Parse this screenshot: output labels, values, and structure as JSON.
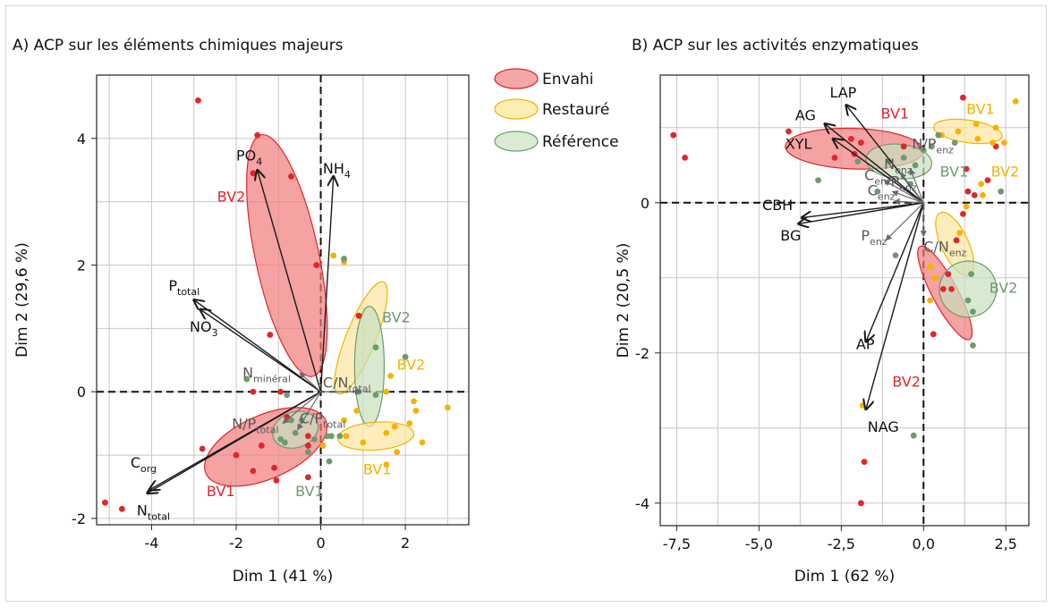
{
  "legend": {
    "items": [
      {
        "label": "Envahi",
        "fill": "#f08a8a",
        "stroke": "#e02020"
      },
      {
        "label": "Restauré",
        "fill": "#fde89a",
        "stroke": "#f2b400"
      },
      {
        "label": "Référence",
        "fill": "#cfe3c3",
        "stroke": "#6aa36a"
      }
    ]
  },
  "colors": {
    "red": "#e0262b",
    "orange": "#f2b400",
    "green": "#6e9b6e",
    "red_fill": "#f07b7b",
    "orange_fill": "#fde6a0",
    "green_fill": "#c7dfbd",
    "arrow_dark": "#1a1a1a",
    "arrow_grey": "#6b6b6b",
    "grid": "#c8c8c8"
  },
  "chart_data": [
    {
      "type": "scatter",
      "title": "A) ACP sur les éléments chimiques majeurs",
      "xlabel": "Dim 1 (41 %)",
      "ylabel": "Dim 2 (29,6 %)",
      "xlim": [
        -5.3,
        3.5
      ],
      "ylim": [
        -2.1,
        5.0
      ],
      "xticks": [
        -4,
        -2,
        0,
        2
      ],
      "xtick_labels": [
        "-4",
        "-2",
        "0",
        "2"
      ],
      "yticks": [
        -2,
        0,
        2,
        4
      ],
      "ytick_labels": [
        "-2",
        "0",
        "2",
        "4"
      ],
      "grid_x": [
        -5,
        -4,
        -3,
        -2,
        -1,
        0,
        1,
        2,
        3
      ],
      "grid_y": [
        -2,
        -1,
        0,
        1,
        2,
        3,
        4,
        5
      ],
      "grid": true,
      "series": [
        {
          "name": "Envahi",
          "color": "red",
          "points": [
            [
              -2.9,
              4.6
            ],
            [
              -1.5,
              4.05
            ],
            [
              -0.7,
              3.4
            ],
            [
              -1.6,
              3.45
            ],
            [
              -0.1,
              2.0
            ],
            [
              -1.2,
              0.9
            ],
            [
              0.9,
              1.2
            ],
            [
              -1.6,
              0.0
            ],
            [
              -0.95,
              0.0
            ],
            [
              -2.8,
              -0.9
            ],
            [
              -2.0,
              -1.0
            ],
            [
              -1.4,
              -0.85
            ],
            [
              -1.1,
              -1.2
            ],
            [
              -1.6,
              -1.25
            ],
            [
              -1.05,
              -1.4
            ],
            [
              -0.3,
              -1.35
            ],
            [
              -0.3,
              -0.7
            ],
            [
              -0.8,
              -0.4
            ],
            [
              -5.1,
              -1.75
            ],
            [
              -4.7,
              -1.85
            ],
            [
              -0.3,
              -0.85
            ]
          ]
        },
        {
          "name": "Restauré",
          "color": "orange",
          "points": [
            [
              0.3,
              2.15
            ],
            [
              0.55,
              2.05
            ],
            [
              1.55,
              0.0
            ],
            [
              1.65,
              0.25
            ],
            [
              2.2,
              -0.15
            ],
            [
              2.25,
              -0.3
            ],
            [
              2.1,
              -0.5
            ],
            [
              2.4,
              -0.8
            ],
            [
              1.8,
              -0.95
            ],
            [
              1.55,
              -1.15
            ],
            [
              3.0,
              -0.25
            ],
            [
              0.85,
              -0.3
            ],
            [
              0.55,
              -0.45
            ],
            [
              0.6,
              -0.7
            ],
            [
              1.0,
              -0.8
            ],
            [
              1.55,
              -0.65
            ],
            [
              1.75,
              -0.55
            ],
            [
              0.05,
              -0.85
            ]
          ]
        },
        {
          "name": "Référence",
          "color": "green",
          "points": [
            [
              0.55,
              2.1
            ],
            [
              1.3,
              0.7
            ],
            [
              2.0,
              0.55
            ],
            [
              -1.75,
              0.2
            ],
            [
              -0.8,
              -0.05
            ],
            [
              -0.7,
              -0.45
            ],
            [
              -0.95,
              -0.75
            ],
            [
              -0.6,
              -0.65
            ],
            [
              -0.3,
              -0.95
            ],
            [
              -0.85,
              -0.8
            ],
            [
              0.15,
              -0.7
            ],
            [
              0.25,
              -0.7
            ],
            [
              0.45,
              -0.7
            ],
            [
              0.2,
              -1.1
            ],
            [
              1.3,
              -0.05
            ],
            [
              0.9,
              0.0
            ],
            [
              -0.15,
              -0.75
            ],
            [
              -0.45,
              -0.45
            ]
          ]
        }
      ],
      "ellipses": [
        {
          "label": "BV2",
          "group": "red",
          "cx": -0.8,
          "cy": 2.15,
          "rx": 0.75,
          "ry": 1.95,
          "angle": 12,
          "label_pos": [
            -2.45,
            3.0
          ]
        },
        {
          "label": "BV1",
          "group": "red",
          "cx": -1.3,
          "cy": -0.87,
          "rx": 1.55,
          "ry": 0.5,
          "angle": 24,
          "label_pos": [
            -2.7,
            -1.65
          ]
        },
        {
          "label": "BV1",
          "group": "green",
          "cx": -0.6,
          "cy": -0.6,
          "rx": 0.55,
          "ry": 0.28,
          "angle": 20,
          "label_pos": [
            -0.6,
            -1.65
          ]
        },
        {
          "label": "BV2",
          "group": "orange",
          "cx": 0.95,
          "cy": 0.85,
          "rx": 0.35,
          "ry": 0.95,
          "angle": -22,
          "label_pos": [
            1.8,
            0.35
          ]
        },
        {
          "label": "BV2",
          "group": "green",
          "cx": 1.15,
          "cy": 0.4,
          "rx": 0.35,
          "ry": 0.95,
          "angle": 0,
          "label_pos": [
            1.45,
            1.1
          ]
        },
        {
          "label": "BV1",
          "group": "orange",
          "cx": 1.3,
          "cy": -0.7,
          "rx": 0.9,
          "ry": 0.22,
          "angle": 4,
          "label_pos": [
            1.0,
            -1.3
          ]
        }
      ],
      "vectors": [
        {
          "label": "PO",
          "sub": "4",
          "sub_pos": "low",
          "x": -1.5,
          "y": 3.5,
          "color": "dark",
          "label_pos": [
            -2.0,
            3.65
          ]
        },
        {
          "label": "NH",
          "sub": "4",
          "sub_pos": "low",
          "x": 0.3,
          "y": 3.4,
          "color": "dark",
          "label_pos": [
            0.05,
            3.45
          ]
        },
        {
          "label": "P",
          "sub": "total",
          "sub_pos": "low",
          "x": -3.0,
          "y": 1.45,
          "color": "dark",
          "label_pos": [
            -3.6,
            1.6
          ]
        },
        {
          "label": "NO",
          "sub": "3",
          "sub_pos": "low",
          "x": -2.85,
          "y": 1.3,
          "color": "dark",
          "label_pos": [
            -3.1,
            0.95
          ]
        },
        {
          "label": "C",
          "sub": "org",
          "sub_pos": "low",
          "x": -4.05,
          "y": -1.55,
          "color": "dark",
          "label_pos": [
            -4.5,
            -1.2
          ]
        },
        {
          "label": "N",
          "sub": "total",
          "sub_pos": "low",
          "x": -4.1,
          "y": -1.6,
          "color": "dark",
          "label_pos": [
            -4.35,
            -1.95
          ]
        },
        {
          "label": "N",
          "sub": "minéral",
          "sub_pos": "low",
          "x": -0.5,
          "y": 0.3,
          "color": "grey",
          "label_pos": [
            -1.85,
            0.22
          ]
        },
        {
          "label": "C/N",
          "sub": "total",
          "sub_pos": "low",
          "x": 0.95,
          "y": 0.0,
          "color": "grey",
          "label_pos": [
            0.05,
            0.07
          ]
        },
        {
          "label": "N/P",
          "sub": "total",
          "sub_pos": "low",
          "x": -0.9,
          "y": -0.5,
          "color": "grey",
          "label_pos": [
            -2.1,
            -0.58
          ]
        },
        {
          "label": "C/P",
          "sub": "total",
          "sub_pos": "low",
          "x": -0.55,
          "y": -0.6,
          "color": "grey",
          "label_pos": [
            -0.5,
            -0.5
          ]
        }
      ]
    },
    {
      "type": "scatter",
      "title": "B) ACP sur les activités enzymatiques",
      "xlabel": "Dim 1 (62 %)",
      "ylabel": "Dim 2 (20,5 %)",
      "xlim": [
        -8.0,
        3.2
      ],
      "ylim": [
        -4.3,
        1.7
      ],
      "xticks": [
        -7.5,
        -5.0,
        -2.5,
        0.0,
        2.5
      ],
      "xtick_labels": [
        "-7,5",
        "-5,0",
        "-2,5",
        "0,0",
        "2,5"
      ],
      "yticks": [
        -4,
        -2,
        0
      ],
      "ytick_labels": [
        "-4",
        "-2",
        "0"
      ],
      "grid_x": [
        -7.5,
        -6.25,
        -5.0,
        -3.75,
        -2.5,
        -1.25,
        0.0,
        1.25,
        2.5
      ],
      "grid_y": [
        -4,
        -3,
        -2,
        -1,
        0,
        1
      ],
      "grid": true,
      "series": [
        {
          "name": "Envahi",
          "color": "red",
          "points": [
            [
              -7.6,
              0.9
            ],
            [
              -7.25,
              0.6
            ],
            [
              -4.1,
              0.95
            ],
            [
              -2.7,
              0.6
            ],
            [
              -2.2,
              0.85
            ],
            [
              -1.9,
              0.8
            ],
            [
              -2.1,
              0.65
            ],
            [
              -0.6,
              0.75
            ],
            [
              1.2,
              1.4
            ],
            [
              2.2,
              0.75
            ],
            [
              1.3,
              0.45
            ],
            [
              1.95,
              0.3
            ],
            [
              1.35,
              0.15
            ],
            [
              1.55,
              0.1
            ],
            [
              1.2,
              -0.15
            ],
            [
              1.0,
              -0.5
            ],
            [
              0.75,
              -0.95
            ],
            [
              0.6,
              -1.15
            ],
            [
              0.85,
              -1.15
            ],
            [
              0.3,
              -1.75
            ],
            [
              -1.8,
              -3.45
            ],
            [
              -1.9,
              -4.0
            ]
          ]
        },
        {
          "name": "Restauré",
          "color": "orange",
          "points": [
            [
              2.8,
              1.35
            ],
            [
              1.6,
              1.05
            ],
            [
              2.2,
              1.0
            ],
            [
              1.65,
              0.85
            ],
            [
              2.1,
              0.8
            ],
            [
              2.45,
              0.8
            ],
            [
              0.55,
              0.9
            ],
            [
              1.05,
              0.95
            ],
            [
              1.75,
              0.25
            ],
            [
              1.8,
              0.1
            ],
            [
              1.3,
              -0.05
            ],
            [
              1.1,
              -0.4
            ],
            [
              0.2,
              -0.85
            ],
            [
              0.35,
              -1.0
            ],
            [
              0.2,
              -1.3
            ],
            [
              -1.85,
              -2.7
            ]
          ]
        },
        {
          "name": "Référence",
          "color": "green",
          "points": [
            [
              -3.2,
              0.3
            ],
            [
              -2.0,
              0.55
            ],
            [
              -1.05,
              0.55
            ],
            [
              -0.6,
              0.6
            ],
            [
              -0.25,
              0.5
            ],
            [
              -0.4,
              0.25
            ],
            [
              -1.4,
              0.15
            ],
            [
              0.0,
              0.7
            ],
            [
              0.95,
              0.8
            ],
            [
              2.35,
              0.15
            ],
            [
              1.45,
              -0.95
            ],
            [
              1.35,
              -1.3
            ],
            [
              1.5,
              -1.45
            ],
            [
              1.5,
              -1.9
            ],
            [
              -0.85,
              -0.7
            ],
            [
              -0.3,
              -3.1
            ],
            [
              0.25,
              0.75
            ],
            [
              0.45,
              0.9
            ]
          ]
        }
      ],
      "ellipses": [
        {
          "label": "BV1",
          "group": "red",
          "cx": -2.1,
          "cy": 0.72,
          "rx": 2.1,
          "ry": 0.27,
          "angle": -2,
          "label_pos": [
            -1.3,
            1.12
          ]
        },
        {
          "label": "BV1",
          "group": "orange",
          "cx": 1.35,
          "cy": 0.95,
          "rx": 1.05,
          "ry": 0.15,
          "angle": -8,
          "label_pos": [
            1.3,
            1.18
          ]
        },
        {
          "label": "BV1",
          "group": "green",
          "cx": -0.75,
          "cy": 0.55,
          "rx": 1.0,
          "ry": 0.23,
          "angle": -5,
          "label_pos": [
            0.5,
            0.35
          ]
        },
        {
          "label": "BV2",
          "group": "orange",
          "cx": 0.95,
          "cy": -0.55,
          "rx": 1.05,
          "ry": 0.18,
          "angle": -65,
          "label_pos": [
            2.05,
            0.35
          ]
        },
        {
          "label": "BV2",
          "group": "red",
          "cx": 0.65,
          "cy": -1.2,
          "rx": 1.6,
          "ry": 0.17,
          "angle": -62,
          "label_pos": [
            -0.95,
            -2.45
          ]
        },
        {
          "label": "BV2",
          "group": "green",
          "cx": 1.35,
          "cy": -1.15,
          "rx": 0.85,
          "ry": 0.38,
          "angle": -75,
          "label_pos": [
            2.0,
            -1.2
          ]
        }
      ],
      "vectors": [
        {
          "label": "LAP",
          "sub": "",
          "x": -2.35,
          "y": 1.3,
          "color": "dark",
          "label_pos": [
            -2.85,
            1.4
          ]
        },
        {
          "label": "AG",
          "sub": "",
          "x": -3.0,
          "y": 1.05,
          "color": "dark",
          "label_pos": [
            -3.9,
            1.1
          ]
        },
        {
          "label": "XYL",
          "sub": "",
          "x": -2.75,
          "y": 0.85,
          "color": "dark",
          "label_pos": [
            -4.2,
            0.72
          ]
        },
        {
          "label": "CBH",
          "sub": "",
          "x": -3.7,
          "y": -0.2,
          "color": "dark",
          "label_pos": [
            -4.9,
            -0.1
          ]
        },
        {
          "label": "BG",
          "sub": "",
          "x": -3.8,
          "y": -0.28,
          "color": "dark",
          "label_pos": [
            -4.35,
            -0.5
          ]
        },
        {
          "label": "AP",
          "sub": "",
          "x": -1.75,
          "y": -1.85,
          "color": "dark",
          "label_pos": [
            -2.05,
            -1.95
          ]
        },
        {
          "label": "NAG",
          "sub": "",
          "x": -1.75,
          "y": -2.75,
          "color": "dark",
          "label_pos": [
            -1.7,
            -3.05
          ]
        },
        {
          "label": "N/P",
          "sub": "enz",
          "sub_pos": "low",
          "x": -0.4,
          "y": 0.45,
          "color": "grey",
          "label_pos": [
            -0.35,
            0.72
          ]
        },
        {
          "label": "N",
          "sub": "enz",
          "sub_pos": "low",
          "x": -0.7,
          "y": 0.4,
          "color": "grey",
          "label_pos": [
            -1.2,
            0.45
          ]
        },
        {
          "label": "C",
          "sub": "enz",
          "sub_pos": "low",
          "x": -1.2,
          "y": 0.3,
          "color": "grey",
          "label_pos": [
            -1.8,
            0.3
          ]
        },
        {
          "label": "P",
          "sub": "enz",
          "sub_pos": "low",
          "x": -0.95,
          "y": 0.15,
          "color": "grey",
          "label_pos": [
            -1.0,
            0.22
          ]
        },
        {
          "label": "C",
          "sub": "enz",
          "sub_pos": "low",
          "x": -0.9,
          "y": 0.02,
          "color": "grey",
          "label_pos": [
            -1.7,
            0.1
          ]
        },
        {
          "label": "P",
          "sub": "enz",
          "sub_pos": "low",
          "x": -1.15,
          "y": -0.5,
          "color": "grey",
          "label_pos": [
            -1.9,
            -0.5
          ]
        },
        {
          "label": "C/N",
          "sub": "enz",
          "sub_pos": "low",
          "x": 0.0,
          "y": -0.45,
          "color": "grey",
          "label_pos": [
            0.0,
            -0.65
          ]
        }
      ]
    }
  ]
}
